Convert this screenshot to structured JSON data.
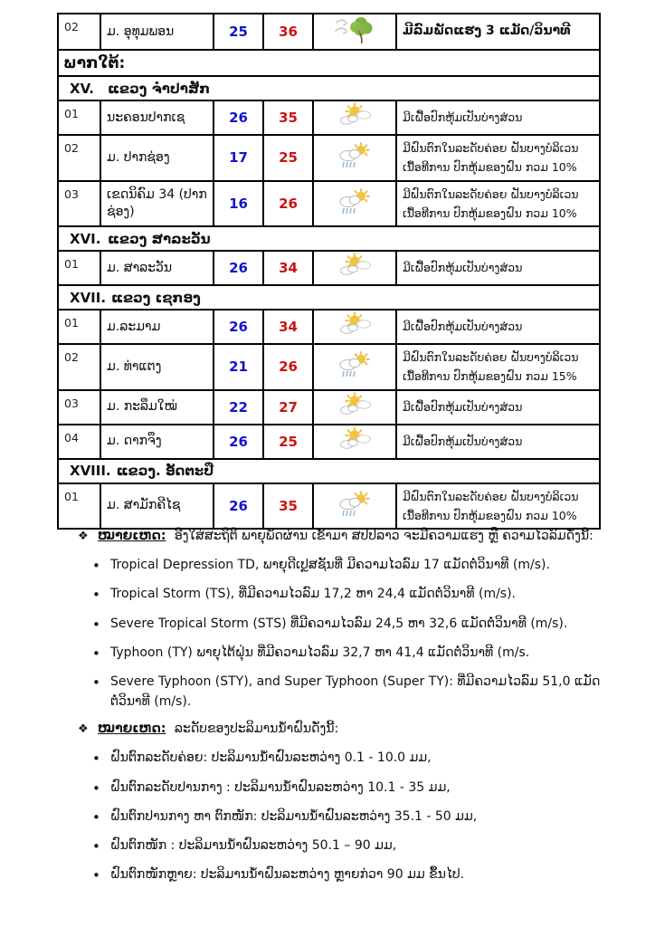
{
  "colors": {
    "min_temp": "#1414CC",
    "max_temp": "#CC1414",
    "border": "#000000"
  },
  "table": {
    "rows": [
      {
        "type": "station",
        "first": true,
        "num": "02",
        "name": "ມ. ອຸທຸມພອນ",
        "min": "25",
        "max": "36",
        "icon": "windy-tree",
        "desc": "ມີລົມພັດແຮງ 3 ແມັດ/ວິນາທີ"
      },
      {
        "type": "region",
        "label": "ພາກໃຕ້:"
      },
      {
        "type": "province",
        "roman": "XV.",
        "name": "ແຂວງ ຈຳປາສັກ"
      },
      {
        "type": "station",
        "num": "01",
        "name": "ນະຄອນປາກເຊ",
        "min": "26",
        "max": "35",
        "icon": "partly-cloudy",
        "desc": "ມີເຝື້ອປົກຫຸ້ມເປັນບ່າງສ່ວນ"
      },
      {
        "type": "station",
        "num": "02",
        "name": "ມ. ປາກຊ່ອງ",
        "min": "17",
        "max": "25",
        "icon": "sun-rain",
        "desc": "ມີຝົນຕົກໃນລະດັບຄ່ອຍ ຝັນບາງບໍລິເວນ ເນື້ອທີການ ປົກຫຸ້ມຂອງຝົນ ກວມ 10%"
      },
      {
        "type": "station",
        "num": "03",
        "name": "ເຂດນິຄົມ 34 (ປາກຊ່ອງ)",
        "min": "16",
        "max": "26",
        "icon": "sun-rain",
        "desc": "ມີຝົນຕົກໃນລະດັບຄ່ອຍ ຝັນບາງບໍລິເວນ ເນື້ອທີການ ປົກຫຸ້ມຂອງຝົນ ກວມ 10%"
      },
      {
        "type": "province",
        "roman": "XVI.",
        "name": "ແຂວງ ສາລະວັນ"
      },
      {
        "type": "station",
        "num": "01",
        "name": "ມ. ສາລະວັນ",
        "min": "26",
        "max": "34",
        "icon": "partly-cloudy",
        "desc": "ມີເຝື້ອປົກຫຸ້ມເປັນບ່າງສ່ວນ"
      },
      {
        "type": "province",
        "roman": "XVII.",
        "name": "ແຂວງ ເຊກອງ"
      },
      {
        "type": "station",
        "num": "01",
        "name": "ມ.ລະມາມ",
        "min": "26",
        "max": "34",
        "icon": "partly-cloudy",
        "desc": "ມີເຝື້ອປົກຫຸ້ມເປັນບ່າງສ່ວນ"
      },
      {
        "type": "station",
        "num": "02",
        "name": "ມ. ທ່າແຕງ",
        "min": "21",
        "max": "26",
        "icon": "sun-rain",
        "desc": "ມີຝົນຕົກໃນລະດັບຄ່ອຍ ຝັນບາງບໍລິເວນ ເນື້ອທີການ ປົກຫຸ້ມຂອງຝົນ ກວມ 15%"
      },
      {
        "type": "station",
        "num": "03",
        "name": "ມ. ກະລຶມໃໝ່",
        "min": "22",
        "max": "27",
        "icon": "partly-cloudy",
        "desc": "ມີເຝື້ອປົກຫຸ້ມເປັນບ່າງສ່ວນ"
      },
      {
        "type": "station",
        "num": "04",
        "name": "ມ. ດາກຈຶງ",
        "min": "26",
        "max": "25",
        "icon": "partly-cloudy",
        "desc": "ມີເຝື້ອປົກຫຸ້ມເປັນບ່າງສ່ວນ"
      },
      {
        "type": "province",
        "roman": "XVIII.",
        "name": "ແຂວງ. ອັດຕະປື"
      },
      {
        "type": "station",
        "num": "01",
        "name": "ມ. ສາມັກຄີໄຊ",
        "min": "26",
        "max": "35",
        "icon": "sun-rain",
        "desc": "ມີຝົນຕົກໃນລະດັບຄ່ອຍ ຝັນບາງບໍລິເວນ ເນື້ອທີການ ປົກຫຸ້ມຂອງຝົນ ກວມ 10%"
      }
    ]
  },
  "notes": {
    "sections": [
      {
        "marker": "❖",
        "title": "ໝາຍເຫດ:",
        "intro": "ອີງໃສ່ສະຖິຕິ ພາຍຸພັດຜ່ານ ເຂົ້າມາ ສປປລາວ ຈະມີຄວາມແຮງ ຫຼື ຄວາມໄວລົມດັ່ງນີ້:",
        "bullets": [
          "Tropical Depression TD, ພາຍຸດີເປຼສຊັນທີ່ ມີຄວາມໄວລົມ 17 ແມັດຕໍ່ວິນາທີ (m/s).",
          "Tropical Storm (TS), ທີ່ມີຄວາມໄວລົມ 17,2 ຫາ 24,4 ແມັດຕໍ່ວິນາທີ (m/s).",
          "Severe Tropical Storm (STS) ທີ່ມີຄວາມໄວລົມ 24,5 ຫາ 32,6 ແມັດຕໍ່ວິນາທີ (m/s).",
          "Typhoon (TY) ພາຍຸໄຕ້ຝຸ່ນ ທີ່ມີຄວາມໄວລົມ 32,7 ຫາ 41,4 ແມັດຕໍ່ວິນາທີ (m/s.",
          "Severe Typhoon (STY), and Super Typhoon (Super TY): ທີ່ມີຄວາມໄວລົມ 51,0 ແມັດຕໍ່ວິນາທີ (m/s)."
        ]
      },
      {
        "marker": "❖",
        "title": "ໝາຍເຫດ:",
        "intro": "ລະດັບຂອງປະລິມານນ້ຳຝົນດັ່ງນີ້:",
        "bullets": [
          "ຝົນຕົກລະດັບຄ່ອຍ:  ປະລິມານນ້ຳຝົນລະຫວ່າງ 0.1 - 10.0 ມມ,",
          "ຝົນຕົກລະດັບປານກາງ : ປະລິມານນ້ຳຝົນລະຫວ່າງ 10.1 - 35 ມມ,",
          "ຝົນຕົກປານກາງ ຫາ ຕົກໜັກ: ປະລິມານນ້ຳຝົນລະຫວ່າງ 35.1 - 50 ມມ,",
          "ຝົນຕົກໜັກ : ປະລິມານນ້ຳຝົນລະຫວ່າງ 50.1 – 90 ມມ,",
          "ຝົນຕົກໜັກຫຼາຍ: ປະລິມານນ້ຳຝົນລະຫວ່າງ ຫຼາຍກ່ວາ 90 ມມ ຂຶ້ນໄປ."
        ]
      }
    ]
  }
}
